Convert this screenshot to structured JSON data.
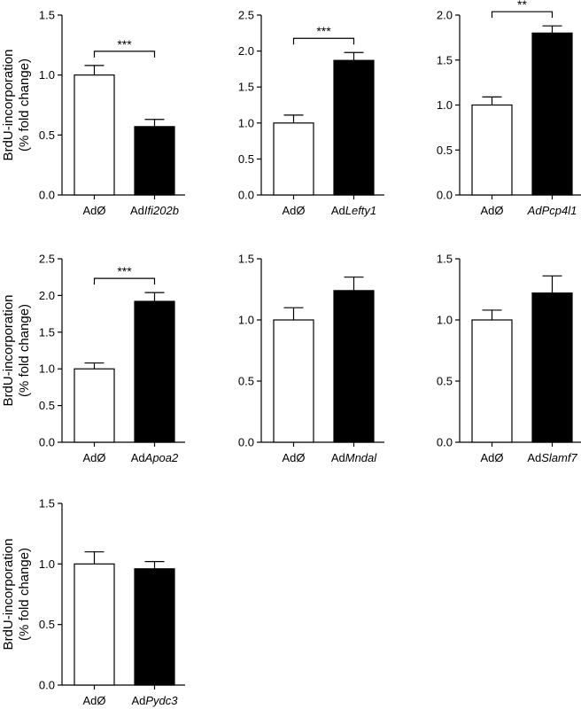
{
  "figure": {
    "ylabel_line1": "BrdU-incorporation",
    "ylabel_line2": "(% fold change)"
  },
  "chart_data": [
    {
      "type": "bar",
      "ylabel": "BrdU-incorporation (% fold change)",
      "ylim": [
        0,
        1.5
      ],
      "yticks": [
        "0.0",
        "0.5",
        "1.0",
        "1.5"
      ],
      "categories": [
        {
          "prefix": "AdØ",
          "italic": ""
        },
        {
          "prefix": "Ad",
          "italic": "Ifi202b"
        }
      ],
      "values": [
        1.0,
        0.57
      ],
      "errors": [
        0.08,
        0.06
      ],
      "fills": [
        "#ffffff",
        "#000000"
      ],
      "significance": "***"
    },
    {
      "type": "bar",
      "ylabel": "",
      "ylim": [
        0,
        2.5
      ],
      "yticks": [
        "0.0",
        "0.5",
        "1.0",
        "1.5",
        "2.0",
        "2.5"
      ],
      "categories": [
        {
          "prefix": "AdØ",
          "italic": ""
        },
        {
          "prefix": "Ad",
          "italic": "Lefty1"
        }
      ],
      "values": [
        1.0,
        1.87
      ],
      "errors": [
        0.11,
        0.11
      ],
      "fills": [
        "#ffffff",
        "#000000"
      ],
      "significance": "***"
    },
    {
      "type": "bar",
      "ylabel": "",
      "ylim": [
        0,
        2.0
      ],
      "yticks": [
        "0.0",
        "0.5",
        "1.0",
        "1.5",
        "2.0"
      ],
      "categories": [
        {
          "prefix": "AdØ",
          "italic": ""
        },
        {
          "prefix": "",
          "italic": "AdPcp4l1"
        }
      ],
      "values": [
        1.0,
        1.8
      ],
      "errors": [
        0.09,
        0.08
      ],
      "fills": [
        "#ffffff",
        "#000000"
      ],
      "significance": "**"
    },
    {
      "type": "bar",
      "ylabel": "BrdU-incorporation (% fold change)",
      "ylim": [
        0,
        2.5
      ],
      "yticks": [
        "0.0",
        "0.5",
        "1.0",
        "1.5",
        "2.0",
        "2.5"
      ],
      "categories": [
        {
          "prefix": "AdØ",
          "italic": ""
        },
        {
          "prefix": "Ad",
          "italic": "Apoa2"
        }
      ],
      "values": [
        1.0,
        1.92
      ],
      "errors": [
        0.08,
        0.12
      ],
      "fills": [
        "#ffffff",
        "#000000"
      ],
      "significance": "***"
    },
    {
      "type": "bar",
      "ylabel": "",
      "ylim": [
        0,
        1.5
      ],
      "yticks": [
        "0.0",
        "0.5",
        "1.0",
        "1.5"
      ],
      "categories": [
        {
          "prefix": "AdØ",
          "italic": ""
        },
        {
          "prefix": "Ad",
          "italic": "Mndal"
        }
      ],
      "values": [
        1.0,
        1.24
      ],
      "errors": [
        0.1,
        0.11
      ],
      "fills": [
        "#ffffff",
        "#000000"
      ],
      "significance": ""
    },
    {
      "type": "bar",
      "ylabel": "",
      "ylim": [
        0,
        1.5
      ],
      "yticks": [
        "0.0",
        "0.5",
        "1.0",
        "1.5"
      ],
      "categories": [
        {
          "prefix": "AdØ",
          "italic": ""
        },
        {
          "prefix": "Ad",
          "italic": "Slamf7"
        }
      ],
      "values": [
        1.0,
        1.22
      ],
      "errors": [
        0.08,
        0.14
      ],
      "fills": [
        "#ffffff",
        "#000000"
      ],
      "significance": ""
    },
    {
      "type": "bar",
      "ylabel": "BrdU-incorporation (% fold change)",
      "ylim": [
        0,
        1.5
      ],
      "yticks": [
        "0.0",
        "0.5",
        "1.0",
        "1.5"
      ],
      "categories": [
        {
          "prefix": "AdØ",
          "italic": ""
        },
        {
          "prefix": "Ad",
          "italic": "Pydc3"
        }
      ],
      "values": [
        1.0,
        0.96
      ],
      "errors": [
        0.1,
        0.06
      ],
      "fills": [
        "#ffffff",
        "#000000"
      ],
      "significance": ""
    }
  ]
}
